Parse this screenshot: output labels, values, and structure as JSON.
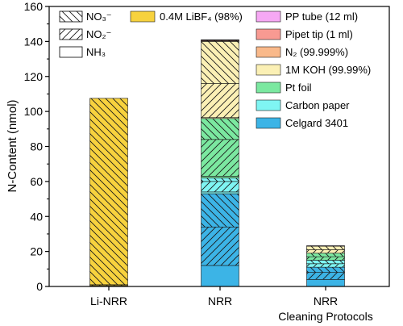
{
  "chart_data": {
    "type": "bar",
    "stacked": true,
    "ylabel": "N-Content (nmol)",
    "ylim": [
      0,
      160
    ],
    "yticks": [
      0,
      20,
      40,
      60,
      80,
      100,
      120,
      140,
      160
    ],
    "categories": [
      {
        "label": "Li-NRR",
        "sublabel": ""
      },
      {
        "label": "NRR",
        "sublabel": ""
      },
      {
        "label": "NRR",
        "sublabel": "Cleaning Protocols"
      }
    ],
    "pattern_legend": [
      {
        "name": "NO₃⁻",
        "pattern": "back"
      },
      {
        "name": "NO₂⁻",
        "pattern": "fwd"
      },
      {
        "name": "NH₃",
        "pattern": "none"
      }
    ],
    "sources": [
      {
        "name": "Celgard 3401",
        "color": "#3CB4E6"
      },
      {
        "name": "Carbon paper",
        "color": "#7FF5F3"
      },
      {
        "name": "Pt foil",
        "color": "#7BE8A0"
      },
      {
        "name": "1M KOH (99.99%)",
        "color": "#FBF0B5"
      },
      {
        "name": "N₂ (99.999%)",
        "color": "#F9B98A"
      },
      {
        "name": "Pipet tip (1 ml)",
        "color": "#F89A92"
      },
      {
        "name": "PP tube (12 ml)",
        "color": "#F6A8F4"
      },
      {
        "name": "0.4M LiBF₄ (98%)",
        "color": "#F7D23E"
      }
    ],
    "stacks": [
      [
        {
          "source": "0.4M LiBF₄ (98%)",
          "form": "NH₃",
          "value": 0.5
        },
        {
          "source": "0.4M LiBF₄ (98%)",
          "form": "NO₂⁻",
          "value": 0.5
        },
        {
          "source": "0.4M LiBF₄ (98%)",
          "form": "NO₃⁻",
          "value": 106.5
        }
      ],
      [
        {
          "source": "Celgard 3401",
          "form": "NH₃",
          "value": 12
        },
        {
          "source": "Celgard 3401",
          "form": "NO₂⁻",
          "value": 22
        },
        {
          "source": "Celgard 3401",
          "form": "NO₃⁻",
          "value": 19
        },
        {
          "source": "Carbon paper",
          "form": "NH₃",
          "value": 1
        },
        {
          "source": "Carbon paper",
          "form": "NO₂⁻",
          "value": 6
        },
        {
          "source": "Carbon paper",
          "form": "NO₃⁻",
          "value": 2
        },
        {
          "source": "Pt foil",
          "form": "NH₃",
          "value": 1
        },
        {
          "source": "Pt foil",
          "form": "NO₂⁻",
          "value": 21
        },
        {
          "source": "Pt foil",
          "form": "NO₃⁻",
          "value": 12
        },
        {
          "source": "1M KOH (99.99%)",
          "form": "NH₃",
          "value": 0.5
        },
        {
          "source": "1M KOH (99.99%)",
          "form": "NO₂⁻",
          "value": 19.5
        },
        {
          "source": "1M KOH (99.99%)",
          "form": "NO₃⁻",
          "value": 24
        },
        {
          "source": "N₂ (99.999%)",
          "form": "NO₃⁻",
          "value": 0.3
        },
        {
          "source": "Pipet tip (1 ml)",
          "form": "NO₃⁻",
          "value": 0.4
        },
        {
          "source": "PP tube (12 ml)",
          "form": "NO₃⁻",
          "value": 0.3
        }
      ],
      [
        {
          "source": "Celgard 3401",
          "form": "NH₃",
          "value": 4
        },
        {
          "source": "Celgard 3401",
          "form": "NO₂⁻",
          "value": 4
        },
        {
          "source": "Celgard 3401",
          "form": "NO₃⁻",
          "value": 3
        },
        {
          "source": "Carbon paper",
          "form": "NO₂⁻",
          "value": 2
        },
        {
          "source": "Carbon paper",
          "form": "NO₃⁻",
          "value": 2
        },
        {
          "source": "Pt foil",
          "form": "NO₂⁻",
          "value": 2
        },
        {
          "source": "Pt foil",
          "form": "NO₃⁻",
          "value": 2
        },
        {
          "source": "1M KOH (99.99%)",
          "form": "NO₂⁻",
          "value": 2
        },
        {
          "source": "1M KOH (99.99%)",
          "form": "NO₃⁻",
          "value": 2
        },
        {
          "source": "PP tube (12 ml)",
          "form": "NO₃⁻",
          "value": 0.3
        }
      ]
    ]
  }
}
